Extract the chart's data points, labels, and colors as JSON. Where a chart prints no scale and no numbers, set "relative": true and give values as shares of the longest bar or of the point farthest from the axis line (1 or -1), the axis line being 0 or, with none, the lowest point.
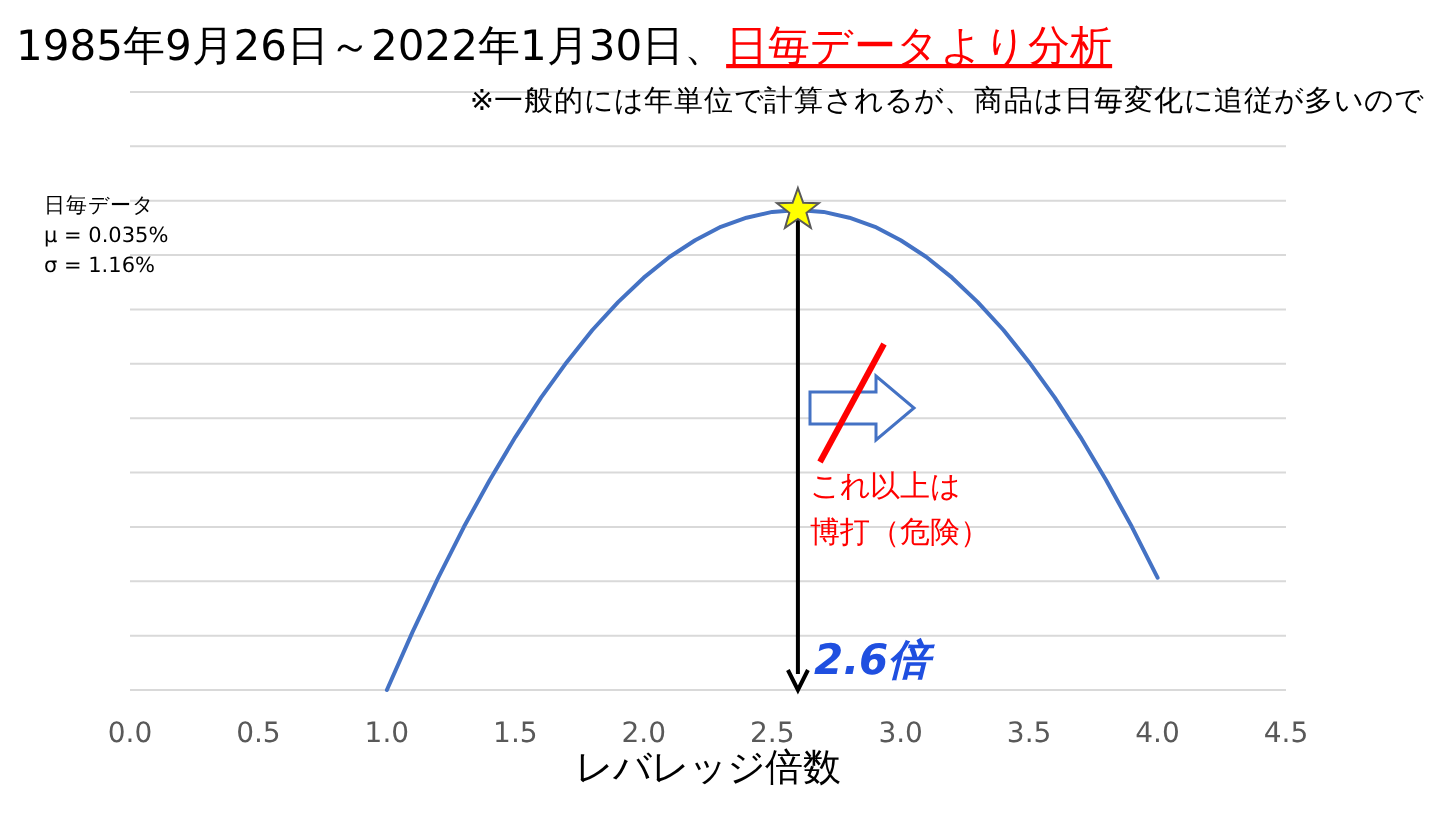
{
  "chart_data": {
    "type": "line",
    "title": "1985年9月26日～2022年1月30日、",
    "subtitle": "※一般的には年単位で計算されるが、商品は日毎変化に追従が多いので",
    "xlabel": "レバレッジ倍数",
    "annotations": [
      "日毎データより分析",
      "日毎データ",
      "μ = 0.035%",
      "σ = 1.16%",
      "これ以上は",
      "博打（危険）"
    ],
    "x": [
      1.0,
      1.1,
      1.2,
      1.3,
      1.4,
      1.5,
      1.6,
      1.7,
      1.8,
      1.9,
      2.0,
      2.1,
      2.2,
      2.3,
      2.4,
      2.5,
      2.6,
      2.7,
      2.8,
      2.9,
      3.0,
      3.1,
      3.2,
      3.3,
      3.4,
      3.5,
      3.6,
      3.7,
      3.8,
      3.9,
      4.0
    ],
    "series": [
      {
        "color": "#4472c4",
        "values": [
          0,
          0.121,
          0.234,
          0.34,
          0.437,
          0.527,
          0.609,
          0.683,
          0.75,
          0.808,
          0.859,
          0.902,
          0.937,
          0.965,
          0.984,
          0.996,
          1,
          0.996,
          0.984,
          0.965,
          0.937,
          0.902,
          0.859,
          0.808,
          0.75,
          0.683,
          0.609,
          0.527,
          0.437,
          0.34,
          0.234
        ]
      }
    ],
    "relative": true,
    "xlim": [
      0,
      4.5
    ],
    "xticks": [
      {
        "value": 0,
        "label": "0.0"
      },
      {
        "value": 0.5,
        "label": "0.5"
      },
      {
        "value": 1,
        "label": "1.0"
      },
      {
        "value": 1.5,
        "label": "1.5"
      },
      {
        "value": 2,
        "label": "2.0"
      },
      {
        "value": 2.5,
        "label": "2.5"
      },
      {
        "value": 3,
        "label": "3.0"
      },
      {
        "value": 3.5,
        "label": "3.5"
      },
      {
        "value": 4,
        "label": "4.0"
      },
      {
        "value": 4.5,
        "label": "4.5"
      }
    ],
    "ref_lines": [
      {
        "axis": "x",
        "value": 2.6,
        "label": "2.6倍",
        "color": "#000000"
      }
    ],
    "grid": "y",
    "marker": "none",
    "line_style": "solid"
  }
}
